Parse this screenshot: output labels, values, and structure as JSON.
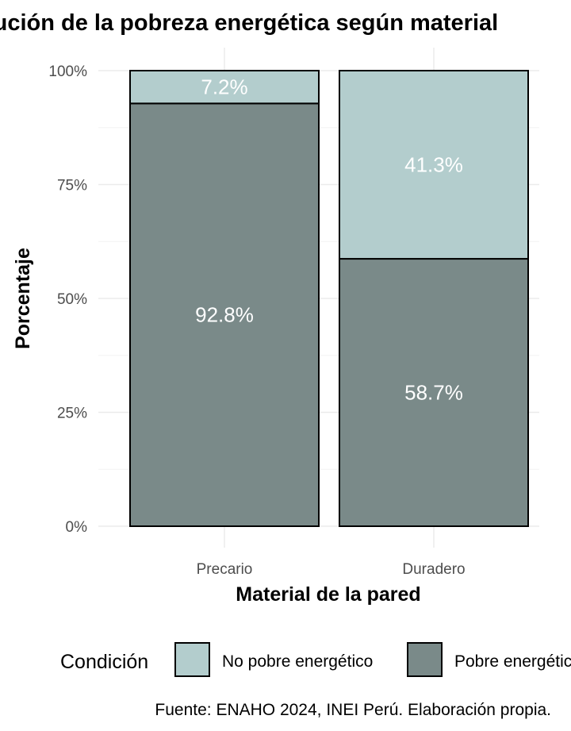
{
  "chart_data": {
    "type": "bar",
    "stacked": true,
    "title": "Distribución de la pobreza energética según material",
    "xlabel": "Material de la pared",
    "ylabel": "Porcentaje",
    "categories": [
      "Precario",
      "Duradero"
    ],
    "series": [
      {
        "name": "Pobre energético",
        "values": [
          92.8,
          58.7
        ],
        "labels": [
          "92.8%",
          "58.7%"
        ],
        "color": "#7a8a89"
      },
      {
        "name": "No pobre energético",
        "values": [
          7.2,
          41.3
        ],
        "labels": [
          "7.2%",
          "41.3%"
        ],
        "color": "#b3cdcd"
      }
    ],
    "ylim": [
      0,
      100
    ],
    "yticks": [
      0,
      25,
      50,
      75,
      100
    ],
    "ytick_labels": [
      "0%",
      "25%",
      "50%",
      "75%",
      "100%"
    ],
    "grid": true,
    "legend": {
      "title": "Condición",
      "position": "bottom",
      "entries": [
        "No pobre energético",
        "Pobre energético"
      ]
    },
    "caption": "Fuente: ENAHO 2024, INEI Perú. Elaboración propia."
  }
}
